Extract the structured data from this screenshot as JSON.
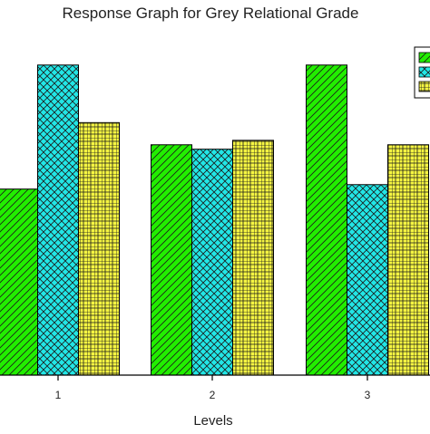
{
  "chart_data": {
    "type": "bar",
    "title": "Response Graph for Grey Relational Grade",
    "xlabel": "Levels",
    "ylabel": "",
    "categories": [
      "1",
      "2",
      "3"
    ],
    "series": [
      {
        "color": "#22ee00",
        "pattern": "diagonal-hatch",
        "values": [
          0.42,
          0.52,
          0.7
        ]
      },
      {
        "color": "#22e6e6",
        "pattern": "cross-hatch",
        "values": [
          0.7,
          0.51,
          0.43
        ]
      },
      {
        "color": "#f5f542",
        "pattern": "grid",
        "values": [
          0.57,
          0.53,
          0.52
        ]
      }
    ],
    "ylim": [
      0,
      0.72
    ],
    "grid": false,
    "legend_position": "top-right"
  }
}
